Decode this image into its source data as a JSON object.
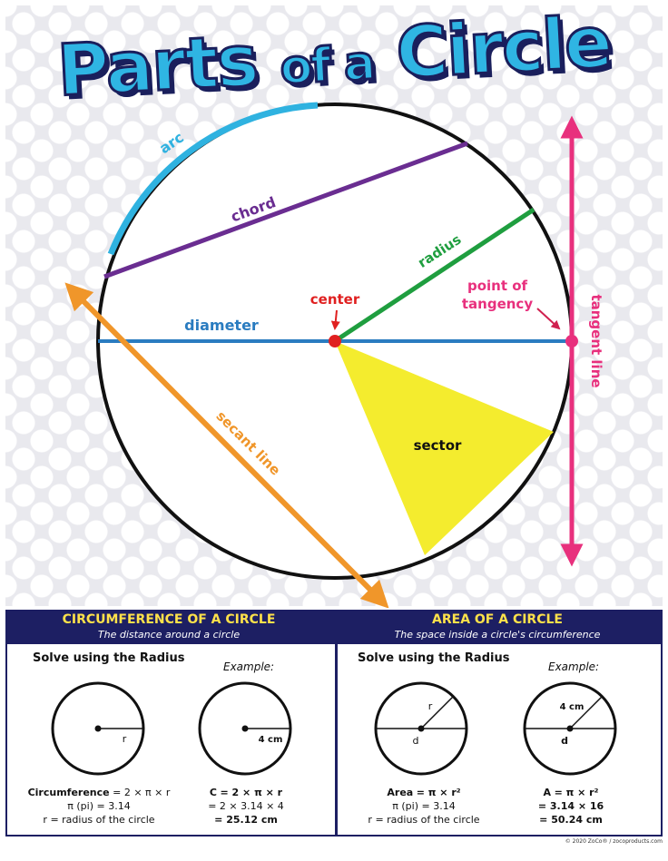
{
  "title": {
    "part1": "Parts",
    "part2": "of a",
    "part3": "Circle"
  },
  "diagram_labels": {
    "arc": "arc",
    "chord": "chord",
    "radius": "radius",
    "center": "center",
    "diameter": "diameter",
    "point_of_tangency_line1": "point of",
    "point_of_tangency_line2": "tangency",
    "tangent_line": "tangent line",
    "secant_line": "secant line",
    "sector": "sector"
  },
  "colors": {
    "arc": "#2fb2e0",
    "chord": "#6a2d91",
    "radius": "#1f9e3f",
    "diameter": "#2a7cc0",
    "center": "#e02020",
    "tangent": "#e8307d",
    "secant": "#f0962a",
    "sector": "#f4ec2e",
    "navy": "#1d1f63"
  },
  "circumference": {
    "heading": "CIRCUMFERENCE OF A CIRCLE",
    "subheading": "The distance around a circle",
    "solve_label": "Solve using the Radius",
    "example_label": "Example:",
    "radius_symbol": "r",
    "example_measure": "4 cm",
    "formula_line1_label": "Circumference",
    "formula_line1_expr": "= 2 × π × r",
    "formula_line2": "π (pi) = 3.14",
    "formula_line3": "r = radius of the circle",
    "example_line1_label": "C",
    "example_line1_expr": "= 2 × π × r",
    "example_line2": "= 2 × 3.14 × 4",
    "example_line3": "= 25.12 cm"
  },
  "area": {
    "heading": "AREA OF A CIRCLE",
    "subheading": "The space inside a circle's circumference",
    "solve_label": "Solve using the Radius",
    "example_label": "Example:",
    "radius_symbol": "r",
    "diameter_symbol": "d",
    "example_measure": "4 cm",
    "example_diameter_symbol": "d",
    "formula_line1_label": "Area",
    "formula_line1_expr": "= π × r²",
    "formula_line2": "π (pi) = 3.14",
    "formula_line3": "r = radius of the circle",
    "example_line1_label": "A",
    "example_line1_expr": "= π × r²",
    "example_line2": "= 3.14 × 16",
    "example_line3": "= 50.24 cm"
  },
  "footer": "© 2020 ZoCo® / zocoproducts.com"
}
